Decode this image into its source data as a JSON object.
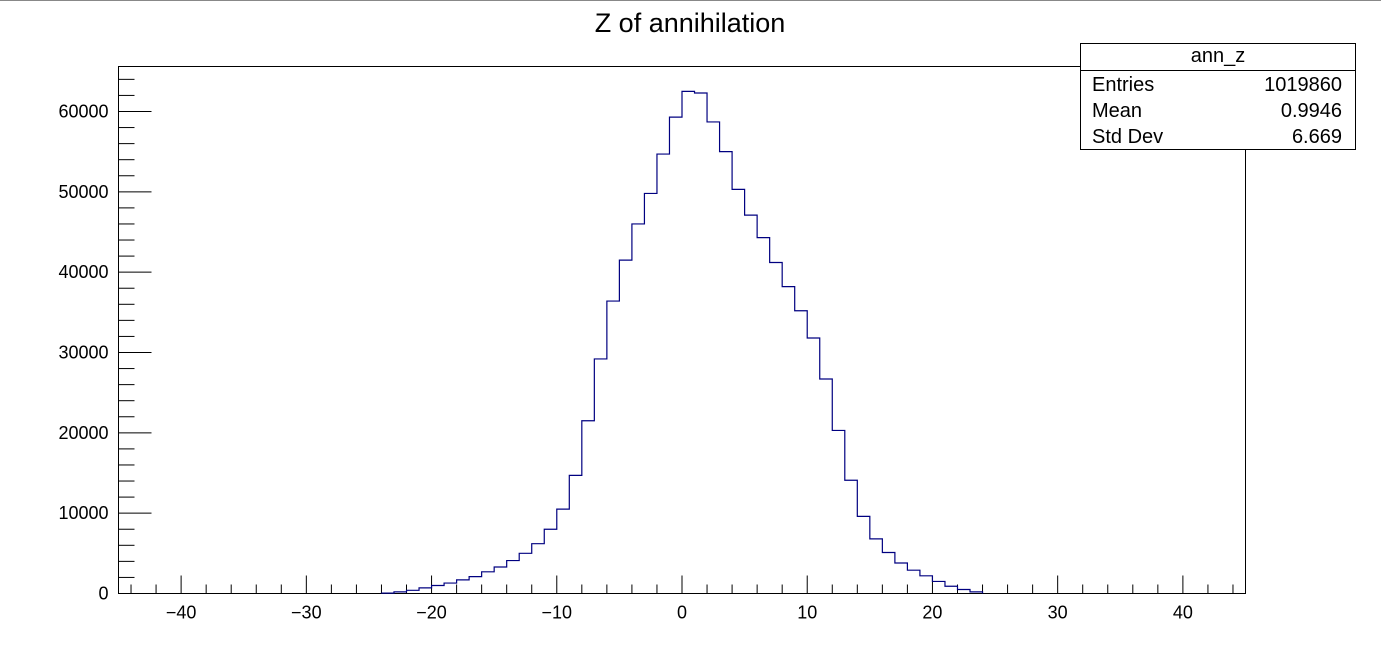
{
  "chart_data": {
    "type": "bar",
    "title": "Z of annihilation",
    "xlim": [
      -45,
      45
    ],
    "ylim": [
      0,
      65600
    ],
    "x_ticks": [
      -40,
      -30,
      -20,
      -10,
      0,
      10,
      20,
      30,
      40
    ],
    "x_tick_labels": [
      "−40",
      "−30",
      "−20",
      "−10",
      "0",
      "10",
      "20",
      "30",
      "40"
    ],
    "y_ticks": [
      0,
      10000,
      20000,
      30000,
      40000,
      50000,
      60000
    ],
    "y_tick_labels": [
      "0",
      "10000",
      "20000",
      "30000",
      "40000",
      "50000",
      "60000"
    ],
    "bin_width": 1,
    "bin_low_edges": [
      -24,
      -23,
      -22,
      -21,
      -20,
      -19,
      -18,
      -17,
      -16,
      -15,
      -14,
      -13,
      -12,
      -11,
      -10,
      -9,
      -8,
      -7,
      -6,
      -5,
      -4,
      -3,
      -2,
      -1,
      0,
      1,
      2,
      3,
      4,
      5,
      6,
      7,
      8,
      9,
      10,
      11,
      12,
      13,
      14,
      15,
      16,
      17,
      18,
      19,
      20,
      21,
      22,
      23
    ],
    "values": [
      50,
      200,
      400,
      700,
      1000,
      1300,
      1700,
      2100,
      2700,
      3300,
      4100,
      5000,
      6200,
      8000,
      10500,
      14700,
      21500,
      29200,
      36400,
      41500,
      46000,
      49800,
      54700,
      59300,
      62500,
      62300,
      58700,
      55000,
      50300,
      47100,
      44300,
      41200,
      38200,
      35200,
      31800,
      26700,
      20300,
      14100,
      9600,
      6800,
      5100,
      3800,
      2900,
      2200,
      1500,
      900,
      500,
      200
    ],
    "line_color": "#000080",
    "grid": false,
    "legend": "none",
    "stats_box": {
      "title": "ann_z",
      "rows": [
        {
          "label": "Entries",
          "value": "1019860"
        },
        {
          "label": "Mean",
          "value": "0.9946"
        },
        {
          "label": "Std Dev",
          "value": "6.669"
        }
      ],
      "placement": "top-right"
    }
  }
}
